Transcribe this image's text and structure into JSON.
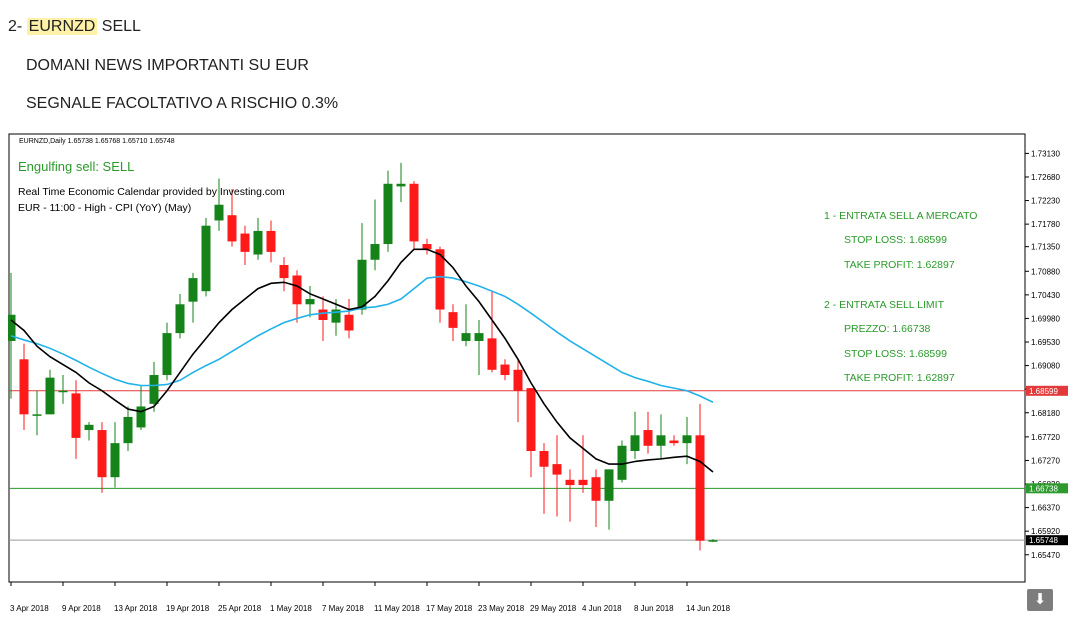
{
  "post": {
    "line1_prefix": "2- ",
    "line1_highlight": "EURNZD",
    "line1_suffix": " SELL",
    "line2": "DOMANI NEWS IMPORTANTI SU EUR",
    "line3": "SEGNALE FACOLTATIVO A RISCHIO 0.3%"
  },
  "colors": {
    "bull": "#15821a",
    "bear": "#ff1a1a",
    "ma_fast": "#000000",
    "ma_slow": "#21b2ea",
    "stop_line": "#e23a3a",
    "entry_line": "#2c9a2c",
    "current_line": "#9a9a9a",
    "signal_text": "#2b9a2b"
  },
  "chart_data": {
    "type": "candlestick",
    "symbol_header": "EURNZD,Daily  1.65738 1.65768 1.65710 1.65748",
    "signal_label": "Engulfing sell: SELL",
    "calendar_line1": "Real Time Economic Calendar provided by Investing.com",
    "calendar_line2": "EUR - 11:00 - High - CPI (YoY) (May)",
    "annotations": [
      "1 - ENTRATA SELL A MERCATO",
      "STOP LOSS: 1.68599",
      "TAKE PROFIT: 1.62897",
      "2 - ENTRATA SELL LIMIT",
      "PREZZO: 1.66738",
      "STOP LOSS: 1.68599",
      "TAKE PROFIT: 1.62897"
    ],
    "ylim": [
      1.6495,
      1.735
    ],
    "y_ticks": [
      "1.73130",
      "1.72680",
      "1.72230",
      "1.71780",
      "1.71350",
      "1.70880",
      "1.70430",
      "1.69980",
      "1.69530",
      "1.69080",
      "1.68630",
      "1.68180",
      "1.67720",
      "1.67270",
      "1.66820",
      "1.66370",
      "1.65920",
      "1.65470"
    ],
    "x_labels": [
      "3 Apr 2018",
      "9 Apr 2018",
      "13 Apr 2018",
      "19 Apr 2018",
      "25 Apr 2018",
      "1 May 2018",
      "7 May 2018",
      "11 May 2018",
      "17 May 2018",
      "23 May 2018",
      "29 May 2018",
      "4 Jun 2018",
      "8 Jun 2018",
      "14 Jun 2018"
    ],
    "x_label_index": [
      0,
      4,
      8,
      12,
      16,
      20,
      24,
      28,
      32,
      36,
      40,
      44,
      48,
      52
    ],
    "price_lines": [
      {
        "name": "stop",
        "value": 1.68599,
        "label": "1.68599"
      },
      {
        "name": "entry",
        "value": 1.66738,
        "label": "1.66738"
      },
      {
        "name": "current",
        "value": 1.65748,
        "label": "1.65748"
      }
    ],
    "candles": [
      {
        "o": 1.6955,
        "h": 1.7085,
        "l": 1.6845,
        "c": 1.7005
      },
      {
        "o": 1.692,
        "h": 1.695,
        "l": 1.6785,
        "c": 1.6815
      },
      {
        "o": 1.6815,
        "h": 1.686,
        "l": 1.6775,
        "c": 1.6815
      },
      {
        "o": 1.6815,
        "h": 1.69,
        "l": 1.6815,
        "c": 1.6885
      },
      {
        "o": 1.686,
        "h": 1.689,
        "l": 1.6835,
        "c": 1.686
      },
      {
        "o": 1.6855,
        "h": 1.688,
        "l": 1.673,
        "c": 1.677
      },
      {
        "o": 1.6785,
        "h": 1.68,
        "l": 1.6765,
        "c": 1.6795
      },
      {
        "o": 1.6785,
        "h": 1.68,
        "l": 1.6665,
        "c": 1.6695
      },
      {
        "o": 1.6695,
        "h": 1.68,
        "l": 1.6675,
        "c": 1.676
      },
      {
        "o": 1.676,
        "h": 1.683,
        "l": 1.6745,
        "c": 1.681
      },
      {
        "o": 1.679,
        "h": 1.687,
        "l": 1.6785,
        "c": 1.683
      },
      {
        "o": 1.6835,
        "h": 1.6915,
        "l": 1.682,
        "c": 1.689
      },
      {
        "o": 1.689,
        "h": 1.699,
        "l": 1.688,
        "c": 1.697
      },
      {
        "o": 1.697,
        "h": 1.7045,
        "l": 1.696,
        "c": 1.7025
      },
      {
        "o": 1.703,
        "h": 1.7085,
        "l": 1.699,
        "c": 1.7075
      },
      {
        "o": 1.705,
        "h": 1.719,
        "l": 1.704,
        "c": 1.7175
      },
      {
        "o": 1.7185,
        "h": 1.7265,
        "l": 1.7165,
        "c": 1.7215
      },
      {
        "o": 1.7195,
        "h": 1.7245,
        "l": 1.7135,
        "c": 1.7145
      },
      {
        "o": 1.716,
        "h": 1.7175,
        "l": 1.71,
        "c": 1.7125
      },
      {
        "o": 1.712,
        "h": 1.719,
        "l": 1.711,
        "c": 1.7165
      },
      {
        "o": 1.7165,
        "h": 1.7185,
        "l": 1.7105,
        "c": 1.7125
      },
      {
        "o": 1.71,
        "h": 1.7115,
        "l": 1.705,
        "c": 1.7075
      },
      {
        "o": 1.708,
        "h": 1.709,
        "l": 1.699,
        "c": 1.7025
      },
      {
        "o": 1.7025,
        "h": 1.706,
        "l": 1.7,
        "c": 1.7035
      },
      {
        "o": 1.7015,
        "h": 1.704,
        "l": 1.6955,
        "c": 1.6995
      },
      {
        "o": 1.699,
        "h": 1.7035,
        "l": 1.6965,
        "c": 1.7015
      },
      {
        "o": 1.7005,
        "h": 1.7035,
        "l": 1.696,
        "c": 1.6975
      },
      {
        "o": 1.7015,
        "h": 1.718,
        "l": 1.7005,
        "c": 1.711
      },
      {
        "o": 1.711,
        "h": 1.7225,
        "l": 1.709,
        "c": 1.714
      },
      {
        "o": 1.714,
        "h": 1.728,
        "l": 1.7125,
        "c": 1.7255
      },
      {
        "o": 1.725,
        "h": 1.7295,
        "l": 1.722,
        "c": 1.7255
      },
      {
        "o": 1.7255,
        "h": 1.726,
        "l": 1.713,
        "c": 1.7145
      },
      {
        "o": 1.714,
        "h": 1.715,
        "l": 1.712,
        "c": 1.713
      },
      {
        "o": 1.713,
        "h": 1.7135,
        "l": 1.699,
        "c": 1.7015
      },
      {
        "o": 1.701,
        "h": 1.7025,
        "l": 1.6955,
        "c": 1.698
      },
      {
        "o": 1.6955,
        "h": 1.7025,
        "l": 1.6945,
        "c": 1.697
      },
      {
        "o": 1.6955,
        "h": 1.6995,
        "l": 1.689,
        "c": 1.697
      },
      {
        "o": 1.696,
        "h": 1.705,
        "l": 1.6895,
        "c": 1.69
      },
      {
        "o": 1.691,
        "h": 1.692,
        "l": 1.688,
        "c": 1.689
      },
      {
        "o": 1.69,
        "h": 1.692,
        "l": 1.68,
        "c": 1.686
      },
      {
        "o": 1.6865,
        "h": 1.6865,
        "l": 1.6695,
        "c": 1.6745
      },
      {
        "o": 1.6745,
        "h": 1.676,
        "l": 1.6625,
        "c": 1.6715
      },
      {
        "o": 1.672,
        "h": 1.6775,
        "l": 1.662,
        "c": 1.67
      },
      {
        "o": 1.669,
        "h": 1.671,
        "l": 1.661,
        "c": 1.668
      },
      {
        "o": 1.669,
        "h": 1.6775,
        "l": 1.6665,
        "c": 1.668
      },
      {
        "o": 1.6695,
        "h": 1.671,
        "l": 1.66,
        "c": 1.665
      },
      {
        "o": 1.665,
        "h": 1.671,
        "l": 1.6595,
        "c": 1.671
      },
      {
        "o": 1.669,
        "h": 1.6765,
        "l": 1.6685,
        "c": 1.6755
      },
      {
        "o": 1.6745,
        "h": 1.682,
        "l": 1.673,
        "c": 1.6775
      },
      {
        "o": 1.6785,
        "h": 1.682,
        "l": 1.674,
        "c": 1.6755
      },
      {
        "o": 1.6755,
        "h": 1.6815,
        "l": 1.673,
        "c": 1.6775
      },
      {
        "o": 1.6765,
        "h": 1.6775,
        "l": 1.6755,
        "c": 1.676
      },
      {
        "o": 1.676,
        "h": 1.681,
        "l": 1.672,
        "c": 1.6775
      },
      {
        "o": 1.6775,
        "h": 1.6835,
        "l": 1.6555,
        "c": 1.65738
      },
      {
        "o": 1.65738,
        "h": 1.65768,
        "l": 1.6571,
        "c": 1.65748
      }
    ],
    "ma_fast": [
      1.6995,
      1.6975,
      1.6945,
      1.6925,
      1.691,
      1.6895,
      1.6875,
      1.686,
      1.6842,
      1.6825,
      1.682,
      1.683,
      1.686,
      1.6895,
      1.693,
      1.696,
      1.699,
      1.7015,
      1.7035,
      1.7055,
      1.7065,
      1.7067,
      1.706,
      1.7045,
      1.7035,
      1.7025,
      1.7015,
      1.702,
      1.704,
      1.707,
      1.7105,
      1.713,
      1.713,
      1.712,
      1.7095,
      1.706,
      1.703,
      1.6995,
      1.696,
      1.692,
      1.6875,
      1.6835,
      1.68,
      1.677,
      1.675,
      1.673,
      1.672,
      1.672,
      1.6725,
      1.6728,
      1.673,
      1.6733,
      1.6735,
      1.6725,
      1.6705
    ],
    "ma_slow": [
      1.6965,
      1.6957,
      1.695,
      1.6941,
      1.693,
      1.6918,
      1.6905,
      1.6893,
      1.6882,
      1.6874,
      1.687,
      1.687,
      1.6872,
      1.688,
      1.6895,
      1.6908,
      1.692,
      1.6935,
      1.695,
      1.6965,
      1.6978,
      1.699,
      1.6998,
      1.7005,
      1.7008,
      1.701,
      1.7012,
      1.7018,
      1.702,
      1.7025,
      1.7035,
      1.7055,
      1.7075,
      1.7078,
      1.7075,
      1.7068,
      1.706,
      1.705,
      1.704,
      1.7025,
      1.7008,
      1.699,
      1.6972,
      1.6955,
      1.694,
      1.6925,
      1.691,
      1.6895,
      1.6885,
      1.6878,
      1.687,
      1.6865,
      1.686,
      1.685,
      1.6838
    ]
  }
}
